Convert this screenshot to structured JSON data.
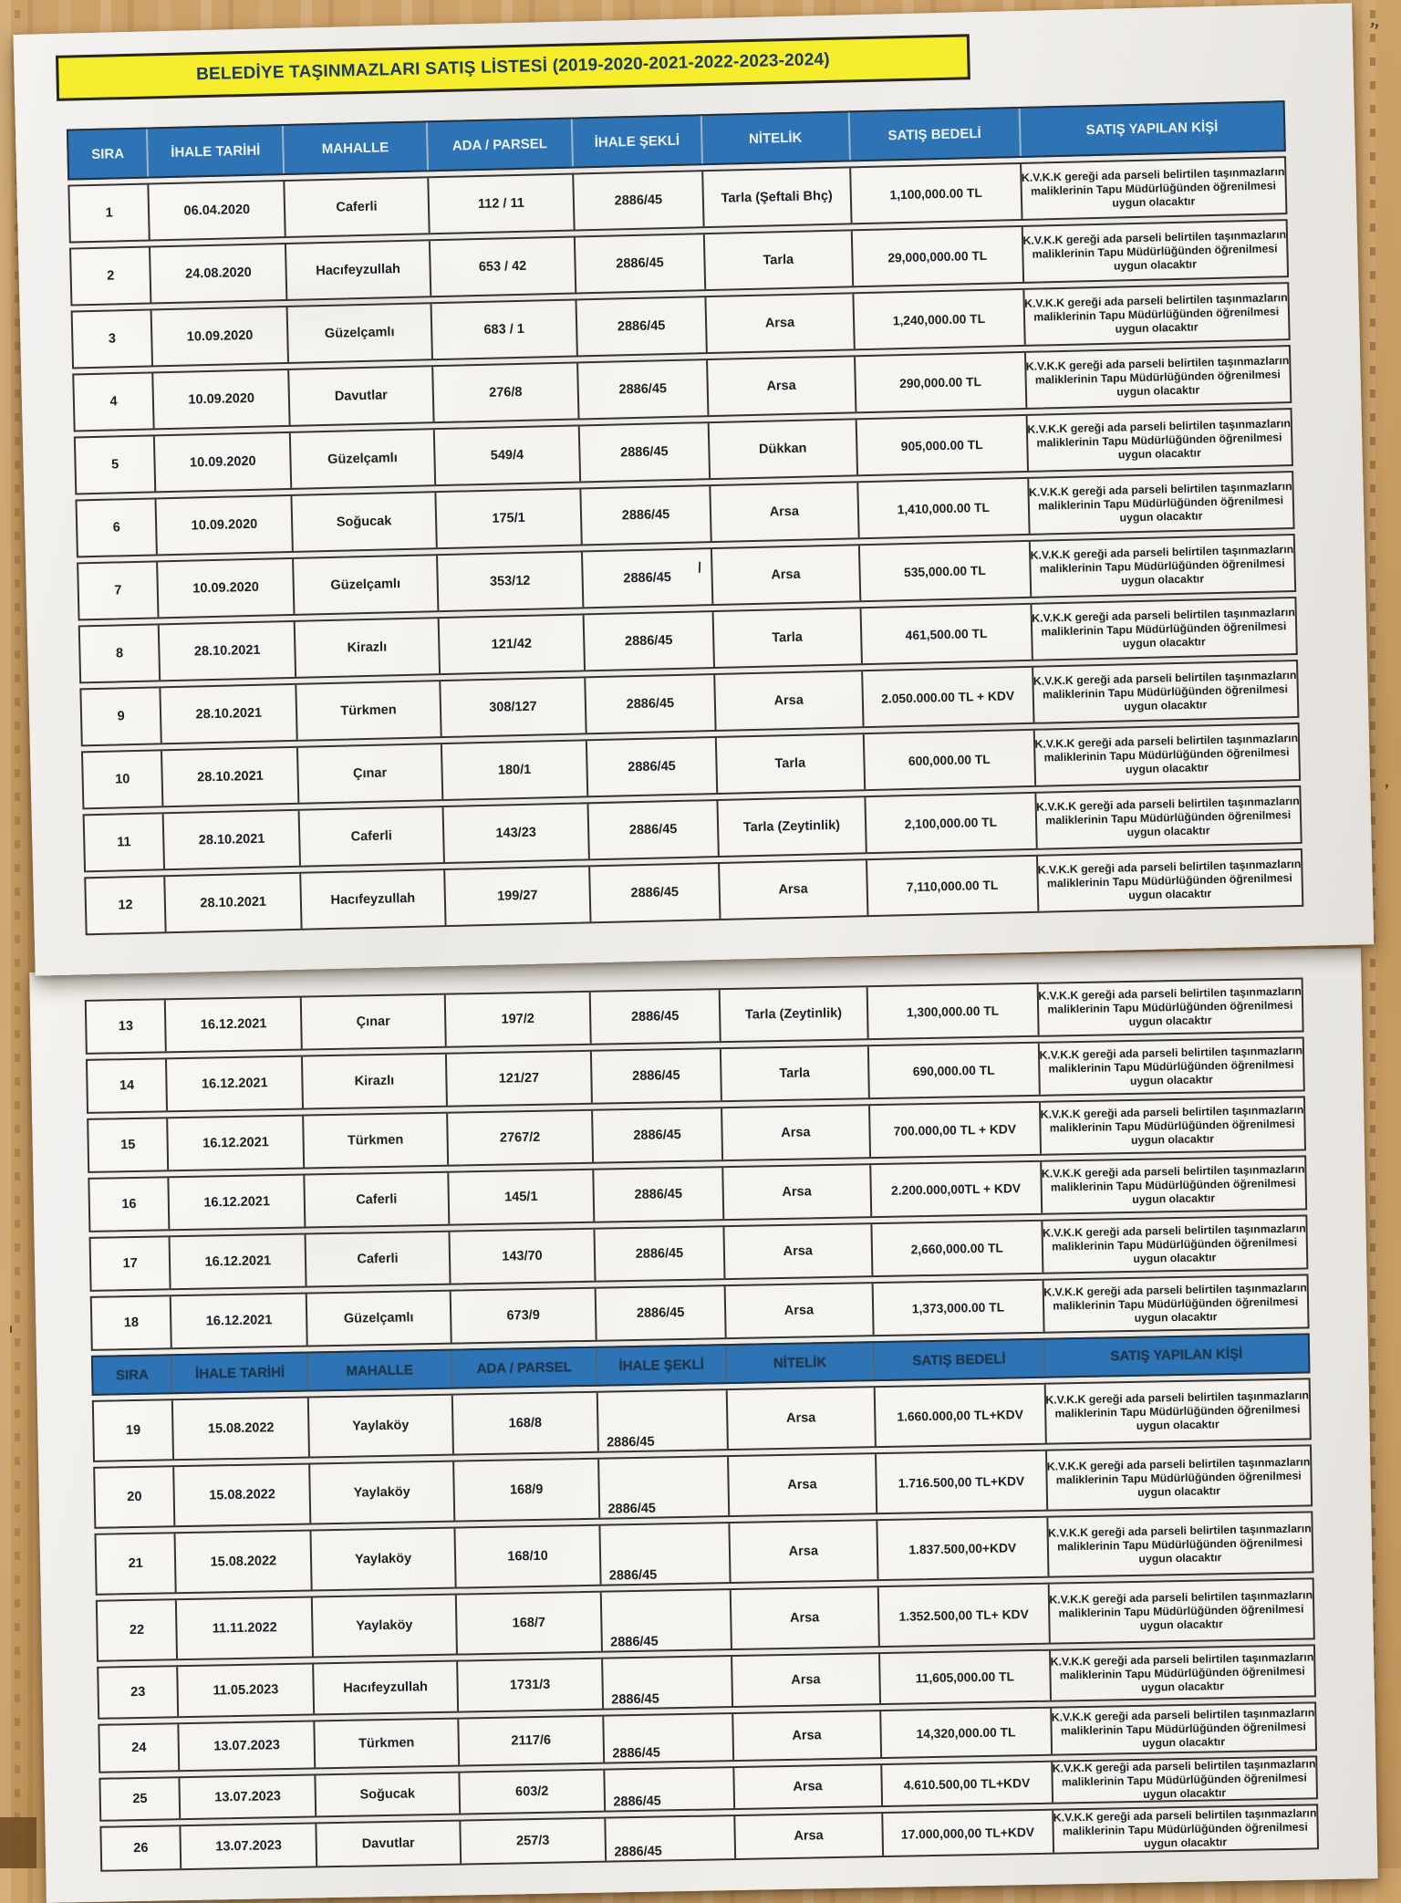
{
  "title": "BELEDİYE TAŞINMAZLARI SATIŞ LİSTESİ (2019-2020-2021-2022-2023-2024)",
  "columns": [
    "SIRA",
    "İHALE TARİHİ",
    "MAHALLE",
    "ADA / PARSEL",
    "İHALE ŞEKLİ",
    "NİTELİK",
    "SATIŞ BEDELİ",
    "SATIŞ YAPILAN KİŞİ"
  ],
  "satis_yapilan_kisi_lines": [
    "K.V.K.K gereği ada parseli belirtilen taşınmazların",
    "maliklerinin Tapu Müdürlüğünden öğrenilmesi",
    "uygun olacaktır"
  ],
  "colors": {
    "header_blue": "#2e74b5",
    "title_yellow": "#f6ee2c",
    "title_text_navy": "#1d3a66",
    "paper": "#efede9",
    "wood": "#c59a61",
    "ink": "#211f1d"
  },
  "pen_marks": {
    "top_right": "’’",
    "mid_right": "’",
    "low_left": "ı"
  },
  "rows": [
    {
      "sira": "1",
      "ihale_tarihi": "06.04.2020",
      "mahalle": "Caferli",
      "ada_parsel": "112 / 11",
      "ihale_sekli": "2886/45",
      "nitelik": "Tarla (Şeftali Bhç)",
      "satis_bedeli": "1,100,000.00 TL"
    },
    {
      "sira": "2",
      "ihale_tarihi": "24.08.2020",
      "mahalle": "Hacıfeyzullah",
      "ada_parsel": "653 / 42",
      "ihale_sekli": "2886/45",
      "nitelik": "Tarla",
      "satis_bedeli": "29,000,000.00 TL"
    },
    {
      "sira": "3",
      "ihale_tarihi": "10.09.2020",
      "mahalle": "Güzelçamlı",
      "ada_parsel": "683 / 1",
      "ihale_sekli": "2886/45",
      "nitelik": "Arsa",
      "satis_bedeli": "1,240,000.00 TL"
    },
    {
      "sira": "4",
      "ihale_tarihi": "10.09.2020",
      "mahalle": "Davutlar",
      "ada_parsel": "276/8",
      "ihale_sekli": "2886/45",
      "nitelik": "Arsa",
      "satis_bedeli": "290,000.00 TL"
    },
    {
      "sira": "5",
      "ihale_tarihi": "10.09.2020",
      "mahalle": "Güzelçamlı",
      "ada_parsel": "549/4",
      "ihale_sekli": "2886/45",
      "nitelik": "Dükkan",
      "satis_bedeli": "905,000.00 TL"
    },
    {
      "sira": "6",
      "ihale_tarihi": "10.09.2020",
      "mahalle": "Soğucak",
      "ada_parsel": "175/1",
      "ihale_sekli": "2886/45",
      "nitelik": "Arsa",
      "satis_bedeli": "1,410,000.00 TL"
    },
    {
      "sira": "7",
      "ihale_tarihi": "10.09.2020",
      "mahalle": "Güzelçamlı",
      "ada_parsel": "353/12",
      "ihale_sekli": "2886/45",
      "nitelik": "Arsa",
      "satis_bedeli": "535,000.00 TL",
      "mark": "\\"
    },
    {
      "sira": "8",
      "ihale_tarihi": "28.10.2021",
      "mahalle": "Kirazlı",
      "ada_parsel": "121/42",
      "ihale_sekli": "2886/45",
      "nitelik": "Tarla",
      "satis_bedeli": "461,500.00 TL"
    },
    {
      "sira": "9",
      "ihale_tarihi": "28.10.2021",
      "mahalle": "Türkmen",
      "ada_parsel": "308/127",
      "ihale_sekli": "2886/45",
      "nitelik": "Arsa",
      "satis_bedeli": "2.050.000.00 TL + KDV"
    },
    {
      "sira": "10",
      "ihale_tarihi": "28.10.2021",
      "mahalle": "Çınar",
      "ada_parsel": "180/1",
      "ihale_sekli": "2886/45",
      "nitelik": "Tarla",
      "satis_bedeli": "600,000.00 TL"
    },
    {
      "sira": "11",
      "ihale_tarihi": "28.10.2021",
      "mahalle": "Caferli",
      "ada_parsel": "143/23",
      "ihale_sekli": "2886/45",
      "nitelik": "Tarla (Zeytinlik)",
      "satis_bedeli": "2,100,000.00 TL"
    },
    {
      "sira": "12",
      "ihale_tarihi": "28.10.2021",
      "mahalle": "Hacıfeyzullah",
      "ada_parsel": "199/27",
      "ihale_sekli": "2886/45",
      "nitelik": "Arsa",
      "satis_bedeli": "7,110,000.00 TL"
    },
    {
      "sira": "13",
      "ihale_tarihi": "16.12.2021",
      "mahalle": "Çınar",
      "ada_parsel": "197/2",
      "ihale_sekli": "2886/45",
      "nitelik": "Tarla (Zeytinlik)",
      "satis_bedeli": "1,300,000.00 TL"
    },
    {
      "sira": "14",
      "ihale_tarihi": "16.12.2021",
      "mahalle": "Kirazlı",
      "ada_parsel": "121/27",
      "ihale_sekli": "2886/45",
      "nitelik": "Tarla",
      "satis_bedeli": "690,000.00 TL"
    },
    {
      "sira": "15",
      "ihale_tarihi": "16.12.2021",
      "mahalle": "Türkmen",
      "ada_parsel": "2767/2",
      "ihale_sekli": "2886/45",
      "nitelik": "Arsa",
      "satis_bedeli": "700.000,00 TL + KDV"
    },
    {
      "sira": "16",
      "ihale_tarihi": "16.12.2021",
      "mahalle": "Caferli",
      "ada_parsel": "145/1",
      "ihale_sekli": "2886/45",
      "nitelik": "Arsa",
      "satis_bedeli": "2.200.000,00TL + KDV"
    },
    {
      "sira": "17",
      "ihale_tarihi": "16.12.2021",
      "mahalle": "Caferli",
      "ada_parsel": "143/70",
      "ihale_sekli": "2886/45",
      "nitelik": "Arsa",
      "satis_bedeli": "2,660,000.00 TL"
    },
    {
      "sira": "18",
      "ihale_tarihi": "16.12.2021",
      "mahalle": "Güzelçamlı",
      "ada_parsel": "673/9",
      "ihale_sekli": "2886/45",
      "nitelik": "Arsa",
      "satis_bedeli": "1,373,000.00 TL"
    },
    {
      "sira": "19",
      "ihale_tarihi": "15.08.2022",
      "mahalle": "Yaylaköy",
      "ada_parsel": "168/8",
      "ihale_sekli": "2886/45",
      "nitelik": "Arsa",
      "satis_bedeli": "1.660.000,00 TL+KDV"
    },
    {
      "sira": "20",
      "ihale_tarihi": "15.08.2022",
      "mahalle": "Yaylaköy",
      "ada_parsel": "168/9",
      "ihale_sekli": "2886/45",
      "nitelik": "Arsa",
      "satis_bedeli": "1.716.500,00 TL+KDV"
    },
    {
      "sira": "21",
      "ihale_tarihi": "15.08.2022",
      "mahalle": "Yaylaköy",
      "ada_parsel": "168/10",
      "ihale_sekli": "2886/45",
      "nitelik": "Arsa",
      "satis_bedeli": "1.837.500,00+KDV"
    },
    {
      "sira": "22",
      "ihale_tarihi": "11.11.2022",
      "mahalle": "Yaylaköy",
      "ada_parsel": "168/7",
      "ihale_sekli": "2886/45",
      "nitelik": "Arsa",
      "satis_bedeli": "1.352.500,00 TL+ KDV"
    },
    {
      "sira": "23",
      "ihale_tarihi": "11.05.2023",
      "mahalle": "Hacıfeyzullah",
      "ada_parsel": "1731/3",
      "ihale_sekli": "2886/45",
      "nitelik": "Arsa",
      "satis_bedeli": "11,605,000.00 TL"
    },
    {
      "sira": "24",
      "ihale_tarihi": "13.07.2023",
      "mahalle": "Türkmen",
      "ada_parsel": "2117/6",
      "ihale_sekli": "2886/45",
      "nitelik": "Arsa",
      "satis_bedeli": "14,320,000.00 TL"
    },
    {
      "sira": "25",
      "ihale_tarihi": "13.07.2023",
      "mahalle": "Soğucak",
      "ada_parsel": "603/2",
      "ihale_sekli": "2886/45",
      "nitelik": "Arsa",
      "satis_bedeli": "4.610.500,00 TL+KDV"
    },
    {
      "sira": "26",
      "ihale_tarihi": "13.07.2023",
      "mahalle": "Davutlar",
      "ada_parsel": "257/3",
      "ihale_sekli": "2886/45",
      "nitelik": "Arsa",
      "satis_bedeli": "17.000,000,00 TL+KDV"
    }
  ]
}
